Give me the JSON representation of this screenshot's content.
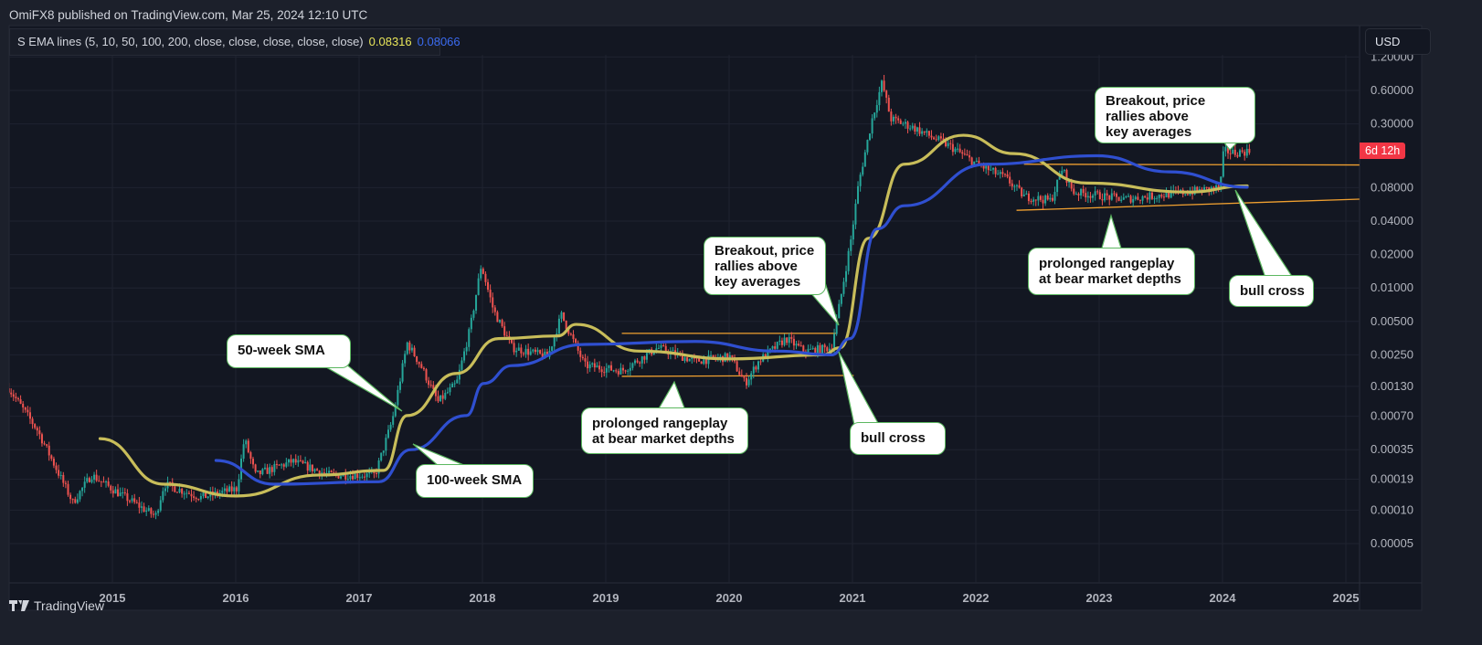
{
  "header": {
    "published": "OmiFX8 published on TradingView.com, Mar 25, 2024 12:10 UTC"
  },
  "legend": {
    "label": "S EMA lines (5, 10, 50, 100, 200, close, close, close, close, close)",
    "value1": "0.08316",
    "value2": "0.08066"
  },
  "currency_button": "USD",
  "countdown_label": "6d 12h",
  "footer": {
    "brand": "TradingView"
  },
  "colors": {
    "up": "#26a69a",
    "down": "#ef5350",
    "sma50": "#c8bd5a",
    "sma100": "#2f4fd0",
    "trendline": "#f0a030",
    "countdown": "#f23645",
    "callout_border": "#5cb860"
  },
  "annotations": [
    {
      "id": "sma50",
      "text": "50-week SMA"
    },
    {
      "id": "sma100",
      "text": "100-week SMA"
    },
    {
      "id": "range1",
      "text": "prolonged rangeplay\nat bear market depths"
    },
    {
      "id": "breakout1",
      "text": "Breakout, price\nrallies above\nkey averages"
    },
    {
      "id": "bullcross1",
      "text": "bull cross"
    },
    {
      "id": "breakout2",
      "text": "Breakout, price\nrallies above\nkey averages"
    },
    {
      "id": "range2",
      "text": "prolonged rangeplay\nat bear market depths"
    },
    {
      "id": "bullcross2",
      "text": "bull cross"
    }
  ],
  "chart_data": {
    "type": "candlestick",
    "scale": "log",
    "interval": "weekly",
    "xlim": [
      2014.1,
      2025.3
    ],
    "x_ticks": [
      "2015",
      "2016",
      "2017",
      "2018",
      "2019",
      "2020",
      "2021",
      "2022",
      "2023",
      "2024",
      "2025"
    ],
    "y_ticks": [
      1.2,
      0.6,
      0.3,
      0.08,
      0.04,
      0.02,
      0.01,
      0.005,
      0.0025,
      0.0013,
      0.0007,
      0.00035,
      0.00019,
      0.0001,
      5e-05
    ],
    "y_tick_labels": [
      "1.20000",
      "0.60000",
      "0.30000",
      "0.08000",
      "0.04000",
      "0.02000",
      "0.01000",
      "0.00500",
      "0.00250",
      "0.00130",
      "0.00070",
      "0.00035",
      "0.00019",
      "0.00010",
      "0.00005"
    ],
    "price_path": [
      [
        2014.16,
        0.00125
      ],
      [
        2014.39,
        0.00053
      ],
      [
        2014.68,
        0.000117
      ],
      [
        2014.83,
        0.000207
      ],
      [
        2015.05,
        0.000142
      ],
      [
        2015.35,
        8.8e-05
      ],
      [
        2015.42,
        0.000171
      ],
      [
        2015.72,
        0.00013
      ],
      [
        2016.01,
        0.000156
      ],
      [
        2016.07,
        0.00044
      ],
      [
        2016.16,
        0.000207
      ],
      [
        2016.46,
        0.000275
      ],
      [
        2016.76,
        0.000207
      ],
      [
        2017.13,
        0.000207
      ],
      [
        2017.27,
        0.00065
      ],
      [
        2017.39,
        0.0032
      ],
      [
        2017.5,
        0.002
      ],
      [
        2017.64,
        0.00094
      ],
      [
        2017.79,
        0.00138
      ],
      [
        2017.9,
        0.0043
      ],
      [
        2017.99,
        0.0161
      ],
      [
        2018.09,
        0.0063
      ],
      [
        2018.24,
        0.0029
      ],
      [
        2018.53,
        0.0024
      ],
      [
        2018.64,
        0.0057
      ],
      [
        2018.83,
        0.002
      ],
      [
        2019.13,
        0.0018
      ],
      [
        2019.42,
        0.0029
      ],
      [
        2019.72,
        0.0022
      ],
      [
        2020.01,
        0.0024
      ],
      [
        2020.13,
        0.00138
      ],
      [
        2020.24,
        0.0022
      ],
      [
        2020.46,
        0.0035
      ],
      [
        2020.61,
        0.0027
      ],
      [
        2020.83,
        0.0029
      ],
      [
        2020.9,
        0.0076
      ],
      [
        2020.99,
        0.0284
      ],
      [
        2021.05,
        0.088
      ],
      [
        2021.16,
        0.333
      ],
      [
        2021.24,
        0.71
      ],
      [
        2021.31,
        0.333
      ],
      [
        2021.5,
        0.276
      ],
      [
        2021.64,
        0.229
      ],
      [
        2021.79,
        0.189
      ],
      [
        2022.01,
        0.13
      ],
      [
        2022.24,
        0.098
      ],
      [
        2022.39,
        0.067
      ],
      [
        2022.61,
        0.061
      ],
      [
        2022.7,
        0.118
      ],
      [
        2022.79,
        0.073
      ],
      [
        2023.2,
        0.063
      ],
      [
        2023.72,
        0.073
      ],
      [
        2023.98,
        0.08
      ],
      [
        2024.01,
        0.172
      ],
      [
        2024.09,
        0.165
      ],
      [
        2024.22,
        0.17
      ]
    ],
    "series": [
      {
        "name": "50-week SMA",
        "points": [
          [
            2014.9,
            0.00044
          ],
          [
            2015.42,
            0.000171
          ],
          [
            2016.01,
            0.000134
          ],
          [
            2016.68,
            0.000207
          ],
          [
            2017.2,
            0.000228
          ],
          [
            2017.39,
            0.00071
          ],
          [
            2017.79,
            0.0017
          ],
          [
            2018.13,
            0.0035
          ],
          [
            2018.61,
            0.0037
          ],
          [
            2018.76,
            0.0047
          ],
          [
            2019.27,
            0.0027
          ],
          [
            2020.01,
            0.0023
          ],
          [
            2020.76,
            0.0025
          ],
          [
            2020.9,
            0.0029
          ],
          [
            2021.13,
            0.028
          ],
          [
            2021.42,
            0.13
          ],
          [
            2021.9,
            0.237
          ],
          [
            2022.31,
            0.162
          ],
          [
            2022.9,
            0.088
          ],
          [
            2023.72,
            0.073
          ],
          [
            2024.2,
            0.083
          ]
        ]
      },
      {
        "name": "100-week SMA",
        "points": [
          [
            2015.84,
            0.00028
          ],
          [
            2016.31,
            0.000171
          ],
          [
            2017.16,
            0.00018
          ],
          [
            2017.42,
            0.00035
          ],
          [
            2017.87,
            0.00071
          ],
          [
            2018.01,
            0.00138
          ],
          [
            2018.24,
            0.002
          ],
          [
            2018.83,
            0.0031
          ],
          [
            2019.72,
            0.0033
          ],
          [
            2020.39,
            0.0027
          ],
          [
            2020.83,
            0.0025
          ],
          [
            2020.98,
            0.0035
          ],
          [
            2021.2,
            0.034
          ],
          [
            2021.42,
            0.055
          ],
          [
            2022.09,
            0.13
          ],
          [
            2022.98,
            0.155
          ],
          [
            2023.57,
            0.111
          ],
          [
            2024.2,
            0.0807
          ]
        ]
      }
    ],
    "trendlines": [
      {
        "name": "range-2019-top",
        "from": [
          2019.13,
          0.0039
        ],
        "to": [
          2020.87,
          0.0039
        ]
      },
      {
        "name": "range-2019-bottom",
        "from": [
          2019.13,
          0.0016
        ],
        "to": [
          2021.01,
          0.00163
        ]
      },
      {
        "name": "range-2022-top",
        "from": [
          2022.39,
          0.13
        ],
        "to": [
          2025.11,
          0.128
        ]
      },
      {
        "name": "range-2022-bottom",
        "from": [
          2022.33,
          0.05
        ],
        "to": [
          2025.11,
          0.063
        ]
      }
    ]
  }
}
